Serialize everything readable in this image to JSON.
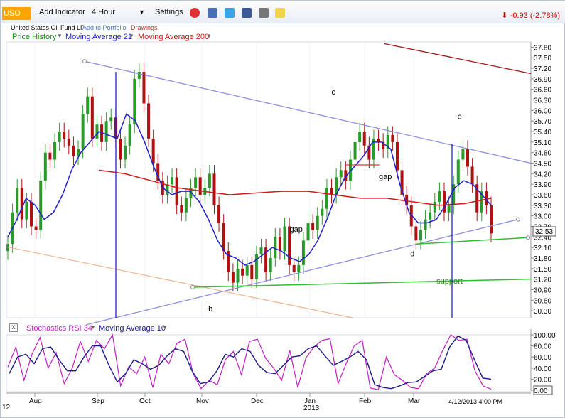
{
  "toolbar": {
    "symbol": "USO",
    "add_indicator": "Add Indicator",
    "interval": "4 Hour",
    "settings": "Settings",
    "change": "-0.93 (-2.78%)",
    "change_color": "#cc0000"
  },
  "subheader": {
    "instrument": "United States Oil Fund LP",
    "add_to_portfolio": "Add to Portfolio",
    "drawings": "Drawings"
  },
  "legend_main": {
    "price_history": "Price History",
    "ma21": "Moving Average 21",
    "ma200": "Moving Average 200"
  },
  "legend_lower": {
    "stoch": "Stochastics RSI 34",
    "ma10": "Moving Average 10"
  },
  "colors": {
    "ma21": "#1f1fd1",
    "ma200": "#d01a1a",
    "stoch": "#c41ec4",
    "ma10": "#1a1a8a",
    "trendline": "#8888e0",
    "support": "#2fbf2f",
    "candle_up": "#2a9a2a",
    "candle_down": "#b01010",
    "vline": "#2323c8"
  },
  "chart_data": [
    {
      "type": "line",
      "title": "",
      "xlabel": "",
      "ylabel": "",
      "x_tick_labels": [
        "Aug",
        "Sep",
        "Oct",
        "Nov",
        "Dec",
        "Jan",
        "Feb",
        "Mar"
      ],
      "year_label": "2013",
      "left_corner_label": "12",
      "date_label": "4/12/2013 4:00 PM",
      "last_price_label": "32.53",
      "ylim": [
        30.1,
        37.95
      ],
      "y_ticks": [
        30.3,
        30.6,
        30.9,
        31.2,
        31.5,
        31.8,
        32.1,
        32.4,
        32.7,
        33.0,
        33.3,
        33.6,
        33.9,
        34.2,
        34.5,
        34.8,
        35.1,
        35.4,
        35.7,
        36.0,
        36.3,
        36.6,
        36.9,
        37.2,
        37.5,
        37.8
      ],
      "y_tick_labels": [
        "30.30",
        "30.60",
        "30.90",
        "31.20",
        "31.50",
        "31.80",
        "32.10",
        "32.40",
        "32.70",
        "33.00",
        "33.30",
        "33.60",
        "33.90",
        "34.20",
        "34.50",
        "34.80",
        "35.10",
        "35.40",
        "35.70",
        "36.00",
        "36.30",
        "36.60",
        "36.90",
        "37.20",
        "37.50",
        "37.80"
      ],
      "annotations": [
        {
          "text": "c",
          "x": 0.62,
          "y": 36.45
        },
        {
          "text": "e",
          "x": 0.86,
          "y": 35.75
        },
        {
          "text": "gap",
          "x": 0.71,
          "y": 34.05
        },
        {
          "text": "gap",
          "x": 0.54,
          "y": 32.55
        },
        {
          "text": "d",
          "x": 0.77,
          "y": 31.85
        },
        {
          "text": "support",
          "x": 0.82,
          "y": 31.07
        },
        {
          "text": "b",
          "x": 0.385,
          "y": 30.28
        }
      ],
      "series": [
        {
          "name": "Price History",
          "values": [
            32.2,
            33.1,
            33.8,
            32.9,
            33.4,
            32.7,
            32.6,
            34.0,
            34.8,
            34.6,
            35.1,
            35.4,
            35.2,
            35.0,
            34.7,
            34.9,
            35.9,
            36.4,
            35.2,
            35.6,
            35.1,
            35.7,
            35.8,
            35.2,
            34.6,
            35.0,
            35.6,
            36.9,
            37.1,
            36.2,
            35.2,
            34.5,
            34.0,
            33.6,
            33.9,
            34.1,
            33.3,
            33.1,
            33.5,
            33.8,
            34.1,
            33.6,
            33.8,
            34.2,
            33.3,
            32.8,
            32.0,
            31.4,
            31.1,
            31.5,
            31.3,
            31.6,
            31.2,
            31.9,
            32.1,
            31.4,
            31.8,
            32.4,
            32.0,
            32.7,
            31.6,
            31.4,
            31.6,
            32.3,
            32.8,
            32.6,
            33.0,
            33.2,
            33.8,
            33.6,
            34.1,
            34.3,
            34.0,
            34.6,
            35.1,
            35.4,
            35.0,
            34.6,
            35.2,
            35.1,
            34.9,
            35.3,
            35.1,
            34.3,
            33.6,
            33.3,
            32.7,
            32.3,
            32.6,
            32.9,
            33.1,
            33.4,
            33.7,
            33.1,
            33.3,
            33.9,
            34.6,
            34.9,
            34.4,
            33.9,
            33.1,
            33.7,
            33.3,
            32.5
          ]
        },
        {
          "name": "Moving Average 21",
          "values": [
            32.4,
            32.9,
            33.5,
            33.3,
            32.9,
            33.1,
            33.6,
            34.3,
            34.8,
            35.1,
            35.4,
            35.3,
            35.2,
            35.9,
            35.7,
            35.1,
            34.4,
            33.8,
            33.6,
            33.7,
            33.7,
            33.4,
            32.9,
            32.3,
            31.9,
            31.8,
            31.6,
            31.7,
            31.9,
            32.1,
            32.0,
            31.8,
            31.7,
            31.9,
            32.3,
            32.9,
            33.6,
            34.1,
            34.4,
            34.7,
            35.1,
            35.1,
            34.9,
            33.9,
            33.1,
            32.8,
            32.8,
            32.9,
            33.3,
            33.8,
            34.0,
            33.9,
            33.6,
            33.3
          ]
        },
        {
          "name": "Moving Average 200",
          "values": [
            34.3,
            34.2,
            34.0,
            33.8,
            33.7,
            33.6,
            33.65,
            33.7,
            33.7,
            33.6,
            33.5,
            33.5,
            33.4,
            33.3,
            33.35,
            33.5
          ]
        },
        {
          "name": "Trendline upper",
          "values": [
            37.4,
            34.5
          ]
        },
        {
          "name": "Trendline lower",
          "values": [
            29.9,
            32.9
          ]
        },
        {
          "name": "Support 1",
          "values": [
            30.97,
            31.2
          ]
        },
        {
          "name": "Support 2",
          "values": [
            32.2,
            32.38
          ]
        }
      ]
    },
    {
      "type": "line",
      "title": "",
      "xlabel": "",
      "ylabel": "",
      "ylim": [
        0,
        100
      ],
      "y_ticks": [
        0,
        20,
        40,
        60,
        80,
        100
      ],
      "y_tick_labels": [
        "0.00",
        "20.00",
        "40.00",
        "60.00",
        "80.00",
        "100.00"
      ],
      "series": [
        {
          "name": "Stochastics RSI 34",
          "values": [
            42,
            78,
            18,
            65,
            95,
            40,
            68,
            12,
            40,
            88,
            52,
            90,
            75,
            100,
            8,
            42,
            30,
            60,
            5,
            65,
            48,
            85,
            92,
            30,
            3,
            18,
            10,
            55,
            70,
            28,
            88,
            92,
            58,
            40,
            18,
            72,
            5,
            58,
            78,
            90,
            93,
            12,
            48,
            80,
            90,
            4,
            1,
            60,
            28,
            18,
            5,
            3,
            30,
            40,
            72,
            100,
            90,
            92,
            35,
            8,
            2
          ]
        },
        {
          "name": "Moving Average 10",
          "values": [
            30,
            60,
            65,
            48,
            75,
            78,
            55,
            35,
            35,
            60,
            80,
            80,
            45,
            15,
            30,
            55,
            48,
            38,
            45,
            62,
            75,
            70,
            35,
            12,
            15,
            35,
            65,
            60,
            75,
            70,
            45,
            32,
            30,
            45,
            60,
            62,
            75,
            80,
            62,
            45,
            52,
            60,
            70,
            55,
            10,
            5,
            3,
            8,
            14,
            15,
            25,
            35,
            38,
            78,
            98,
            90,
            55,
            22,
            20
          ]
        }
      ]
    }
  ]
}
